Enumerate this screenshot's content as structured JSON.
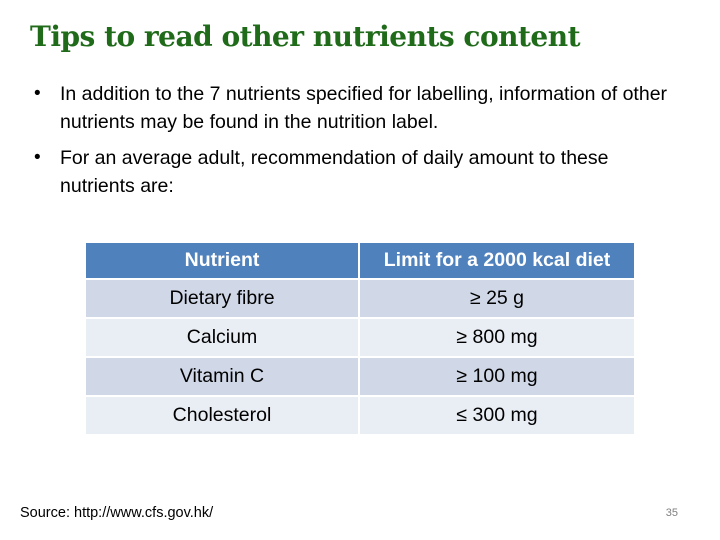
{
  "slide": {
    "title": "Tips to read other nutrients content",
    "bullets": [
      "In addition to the 7 nutrients specified for labelling, information of other nutrients may be found in the nutrition label.",
      "For an average adult, recommendation of daily amount to these nutrients are:"
    ],
    "bullet_symbol": "•",
    "table": {
      "headers": [
        "Nutrient",
        "Limit for a 2000 kcal diet"
      ],
      "rows": [
        [
          "Dietary fibre",
          "≥ 25 g"
        ],
        [
          "Calcium",
          "≥ 800 mg"
        ],
        [
          "Vitamin C",
          "≥ 100 mg"
        ],
        [
          "Cholesterol",
          "≤ 300 mg"
        ]
      ]
    },
    "source": "Source: http://www.cfs.gov.hk/",
    "page_number": "35"
  },
  "colors": {
    "title": "#1f6b1a",
    "header_bg": "#4f81bd",
    "row_odd_bg": "#d0d8e8",
    "row_even_bg": "#e9edf4"
  }
}
